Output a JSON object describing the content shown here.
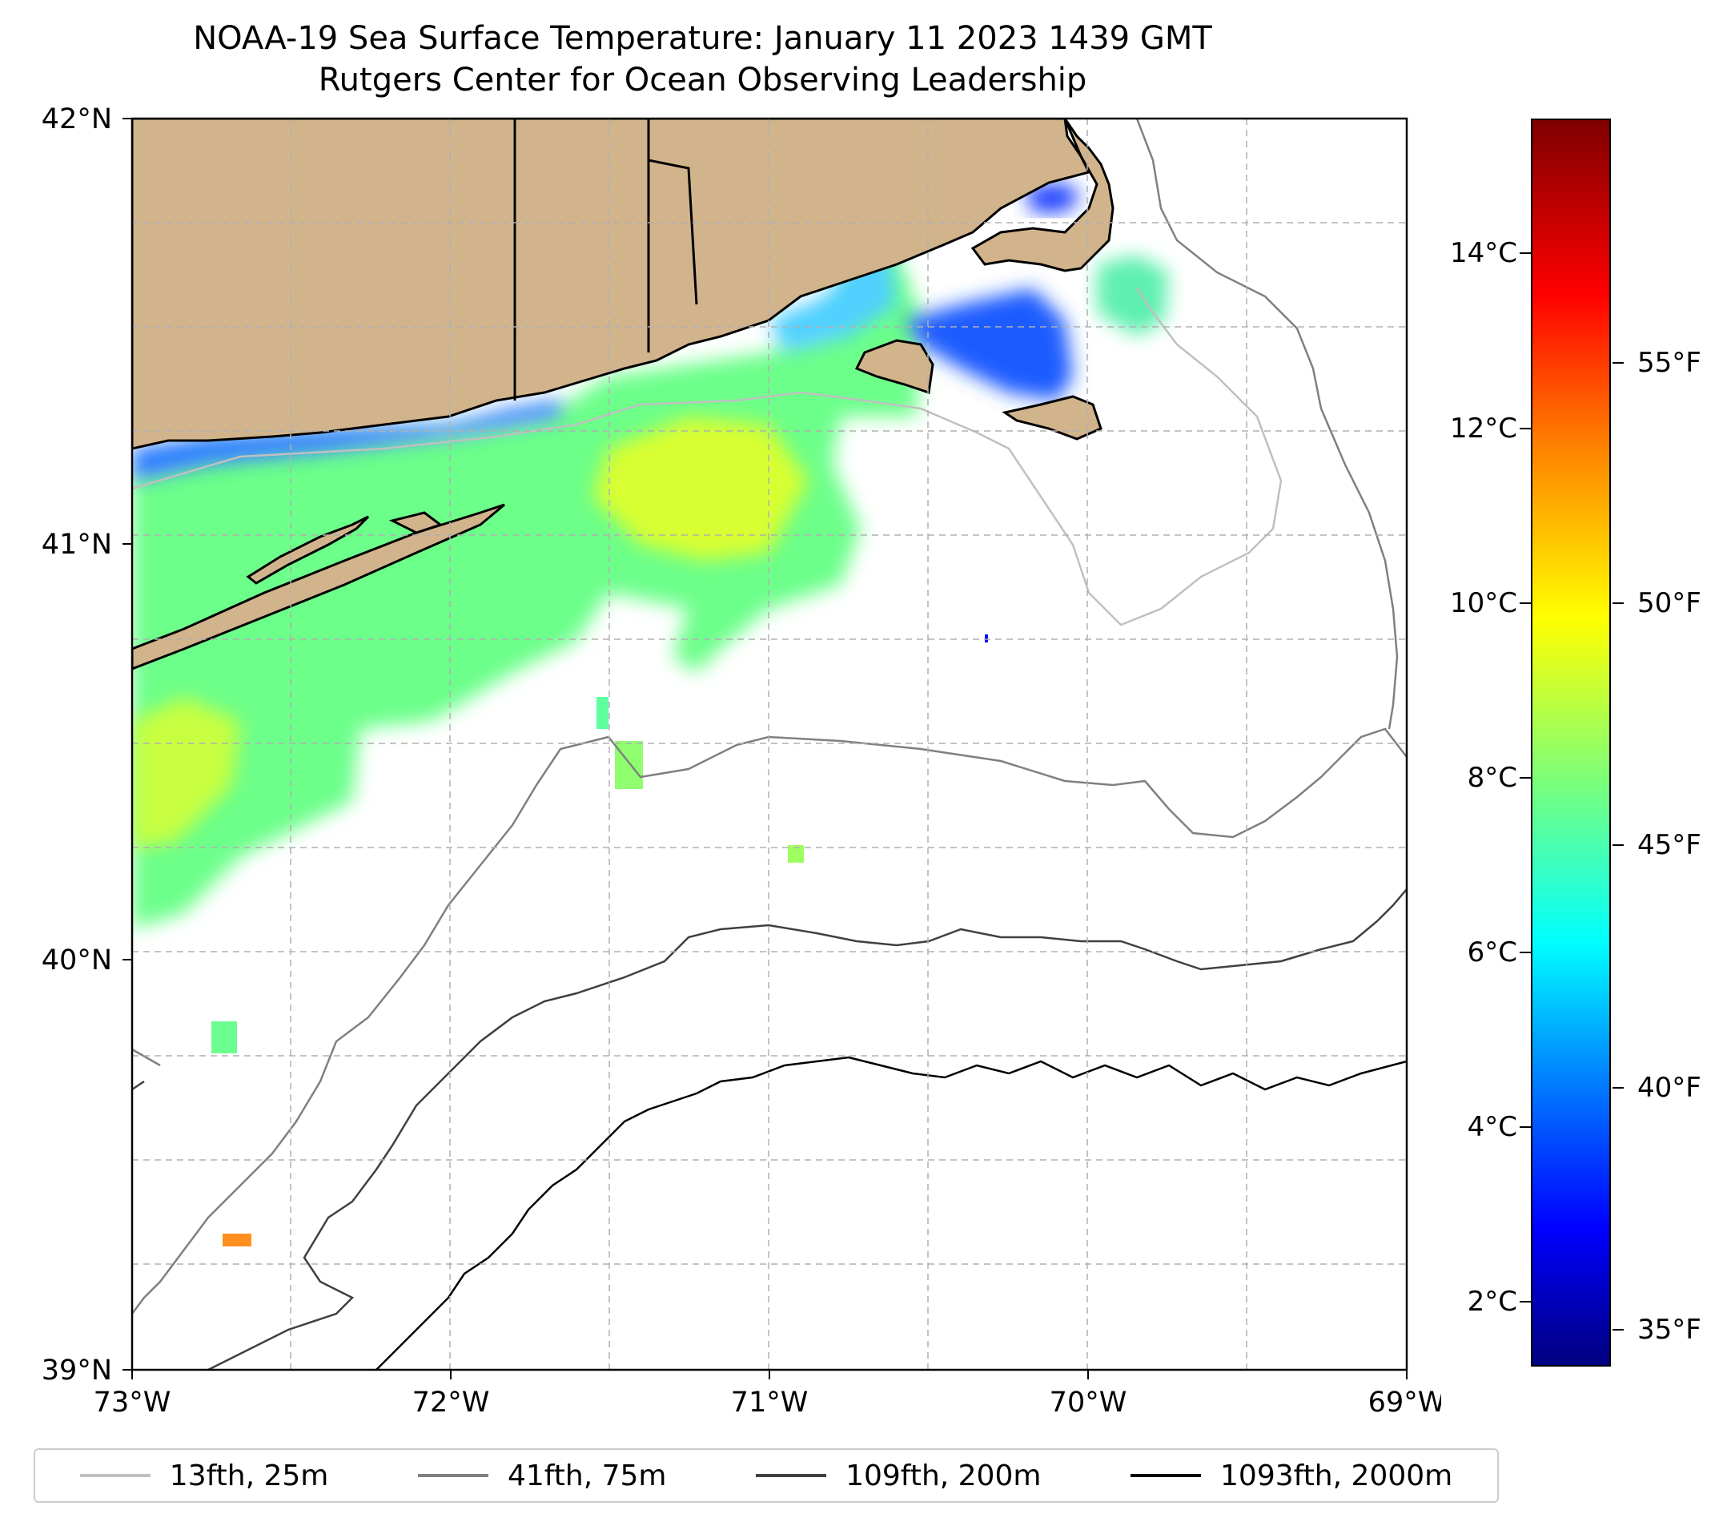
{
  "title": {
    "line1": "NOAA-19 Sea Surface Temperature: January 11 2023 1439 GMT",
    "line2": "Rutgers Center for Ocean Observing Leadership"
  },
  "axes": {
    "x_ticks": [
      "73°W",
      "72°W",
      "71°W",
      "70°W",
      "69°W"
    ],
    "y_ticks": [
      "42°N",
      "41°N",
      "40°N",
      "39°N"
    ],
    "lon_range": [
      -73,
      -69
    ],
    "lat_range": [
      39,
      42
    ],
    "grid": true
  },
  "colorbar": {
    "colormap": "jet",
    "range_c": [
      1.3,
      15.8
    ],
    "celsius_ticks": [
      {
        "value": 14,
        "label": "14°C"
      },
      {
        "value": 12,
        "label": "12°C"
      },
      {
        "value": 10,
        "label": "10°C"
      },
      {
        "value": 8,
        "label": "8°C"
      },
      {
        "value": 6,
        "label": "6°C"
      },
      {
        "value": 4,
        "label": "4°C"
      },
      {
        "value": 2,
        "label": "2°C"
      }
    ],
    "fahrenheit_ticks": [
      {
        "value_c": 12.78,
        "label": "55°F"
      },
      {
        "value_c": 10.0,
        "label": "50°F"
      },
      {
        "value_c": 7.22,
        "label": "45°F"
      },
      {
        "value_c": 4.44,
        "label": "40°F"
      },
      {
        "value_c": 1.67,
        "label": "35°F"
      }
    ]
  },
  "legend": [
    {
      "label": "13fth, 25m",
      "color": "#c0c0c0"
    },
    {
      "label": "41fth, 75m",
      "color": "#808080"
    },
    {
      "label": "109fth, 200m",
      "color": "#404040"
    },
    {
      "label": "1093fth, 2000m",
      "color": "#000000"
    }
  ],
  "land_color": "#d2b48c"
}
